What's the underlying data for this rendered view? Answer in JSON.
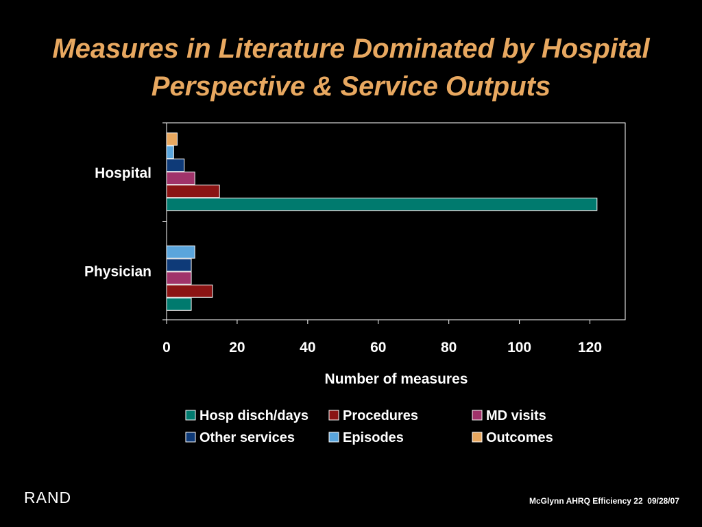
{
  "slide": {
    "title_line1": "Measures in Literature Dominated by Hospital",
    "title_line2": "Perspective & Service Outputs",
    "logo": "RAND",
    "footer": "McGlynn AHRQ Efficiency 22  09/28/07"
  },
  "colors": {
    "title": "#E8A860",
    "background": "#000000",
    "text": "#ffffff"
  },
  "chart_data": {
    "type": "bar",
    "orientation": "horizontal",
    "xlabel": "Number of measures",
    "xlim": [
      0,
      130
    ],
    "xticks": [
      0,
      20,
      40,
      60,
      80,
      100,
      120
    ],
    "categories": [
      "Hospital",
      "Physician"
    ],
    "series": [
      {
        "name": "Hosp disch/days",
        "color": "#007A6E",
        "values": [
          122,
          7
        ]
      },
      {
        "name": "Procedures",
        "color": "#8B1414",
        "values": [
          15,
          13
        ]
      },
      {
        "name": "MD visits",
        "color": "#A0336A",
        "values": [
          8,
          7
        ]
      },
      {
        "name": "Other services",
        "color": "#0E3A78",
        "values": [
          5,
          7
        ]
      },
      {
        "name": "Episodes",
        "color": "#5AA5DC",
        "values": [
          2,
          8
        ]
      },
      {
        "name": "Outcomes",
        "color": "#E8A860",
        "values": [
          3,
          0
        ]
      }
    ],
    "legend_position": "bottom",
    "grid": false
  }
}
